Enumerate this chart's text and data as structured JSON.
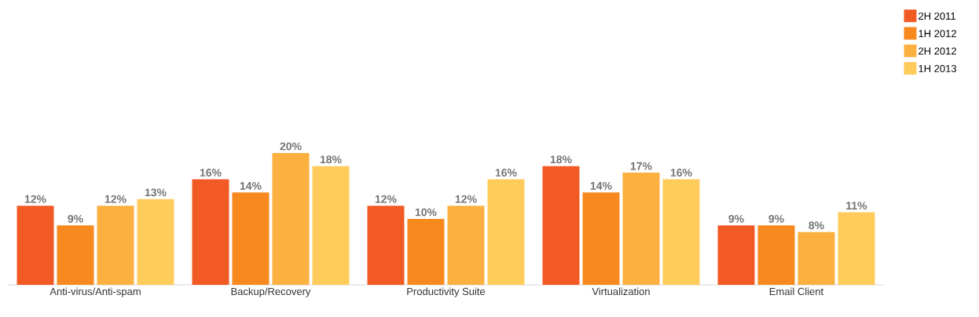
{
  "chart_data": {
    "type": "bar",
    "categories": [
      "Anti-virus/Anti-spam",
      "Backup/Recovery",
      "Productivity Suite",
      "Virtualization",
      "Email Client"
    ],
    "series": [
      {
        "name": "2H 2011",
        "color": "#f15a24",
        "values": [
          12,
          16,
          12,
          18,
          9
        ],
        "value_labels": [
          "12%",
          "16%",
          "12%",
          "18%",
          "9%"
        ]
      },
      {
        "name": "1H 2012",
        "color": "#f7891f",
        "values": [
          9,
          14,
          10,
          14,
          9
        ],
        "value_labels": [
          "9%",
          "14%",
          "10%",
          "14%",
          "9%"
        ]
      },
      {
        "name": "2H 2012",
        "color": "#fbb040",
        "values": [
          12,
          20,
          12,
          17,
          8
        ],
        "value_labels": [
          "12%",
          "20%",
          "12%",
          "17%",
          "8%"
        ]
      },
      {
        "name": "1H 2013",
        "color": "#ffcb5b",
        "values": [
          13,
          18,
          16,
          16,
          11
        ],
        "value_labels": [
          "13%",
          "18%",
          "16%",
          "16%",
          "11%"
        ]
      }
    ],
    "legend": "top right",
    "tick_labels": "x"
  }
}
